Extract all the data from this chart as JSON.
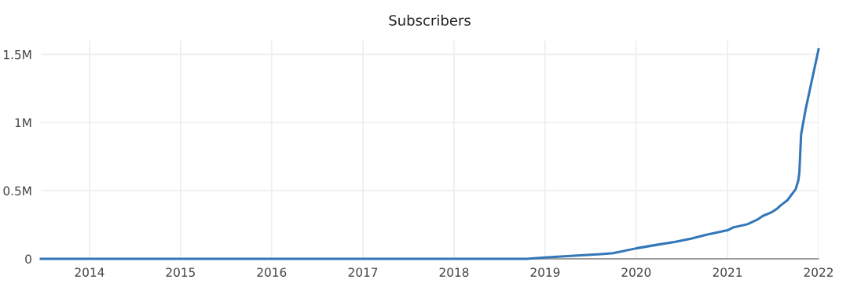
{
  "chart_data": {
    "type": "line",
    "title": "Subscribers",
    "x": [
      "2013-06-20",
      "2014-06-01",
      "2016-01-01",
      "2018-01-01",
      "2018-10-19",
      "2019-01-01",
      "2019-04-27",
      "2019-07-31",
      "2019-10-01",
      "2020-01-01",
      "2020-03-14",
      "2020-06-07",
      "2020-08-08",
      "2020-10-09",
      "2021-01-01",
      "2021-01-23",
      "2021-03-22",
      "2021-04-28",
      "2021-05-23",
      "2021-06-25",
      "2021-07-20",
      "2021-08-04",
      "2021-08-29",
      "2021-10-01",
      "2021-10-12",
      "2021-10-16",
      "2021-10-23",
      "2021-11-10",
      "2022-01-01"
    ],
    "series": [
      {
        "color": "#3377b8",
        "values": [
          0,
          0,
          0,
          0,
          0,
          10000,
          23000,
          33000,
          42000,
          77000,
          100000,
          125000,
          148000,
          177000,
          210000,
          230000,
          254000,
          285000,
          315000,
          340000,
          370000,
          395000,
          430000,
          510000,
          577000,
          635000,
          913000,
          1096000,
          1538000
        ]
      }
    ],
    "xlim": [
      "2013-06-20",
      "2022-01-01"
    ],
    "xticks": [
      "2014",
      "2015",
      "2016",
      "2017",
      "2018",
      "2019",
      "2020",
      "2021",
      "2022"
    ],
    "ylim": [
      0,
      1600000
    ],
    "yticks": [
      {
        "value": 0,
        "label": "0"
      },
      {
        "value": 500000,
        "label": "0.5M"
      },
      {
        "value": 1000000,
        "label": "1M"
      },
      {
        "value": 1500000,
        "label": "1.5M"
      }
    ],
    "grid": true,
    "marker": "none",
    "line_style": "solid"
  }
}
